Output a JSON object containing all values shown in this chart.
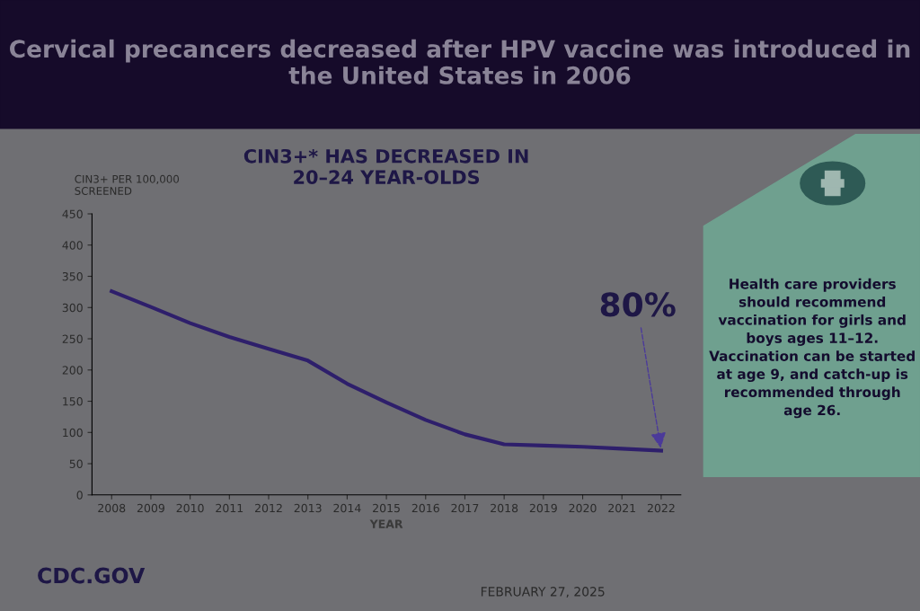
{
  "chart_data": {
    "type": "line",
    "title": "Cervical precancers decreased after HPV vaccine was introduced in the United States in 2006",
    "subtitle": "CIN3+* HAS DECREASED IN\n20–24 YEAR-OLDS",
    "ylabel": "CIN3+ PER 100,000\nSCREENED",
    "xlabel": "YEAR",
    "categories": [
      "2008",
      "2009",
      "2010",
      "2011",
      "2012",
      "2013",
      "2014",
      "2015",
      "2016",
      "2017",
      "2018",
      "2019",
      "2020",
      "2021",
      "2022"
    ],
    "series": [
      {
        "color": "#2e1f6b",
        "values": [
          326,
          301,
          275,
          253,
          234,
          215,
          178,
          148,
          120,
          97,
          81,
          79,
          77,
          74,
          71
        ]
      }
    ],
    "ylim": [
      0,
      450
    ],
    "yticks": [
      0,
      50,
      100,
      150,
      200,
      250,
      300,
      350,
      400,
      450
    ],
    "grid": false,
    "legend": false,
    "marker": "none",
    "line_style": "solid",
    "annotations": [
      {
        "text": "80%",
        "x": "2022",
        "y": 71
      },
      "Health care providers\nshould recommend\nvaccination for girls and\nboys ages 11–12.\nVaccination can be started\nat age 9, and catch-up is\nrecommended through\nage 26.",
      "CDC.GOV",
      "FEBRUARY 27, 2025"
    ]
  }
}
